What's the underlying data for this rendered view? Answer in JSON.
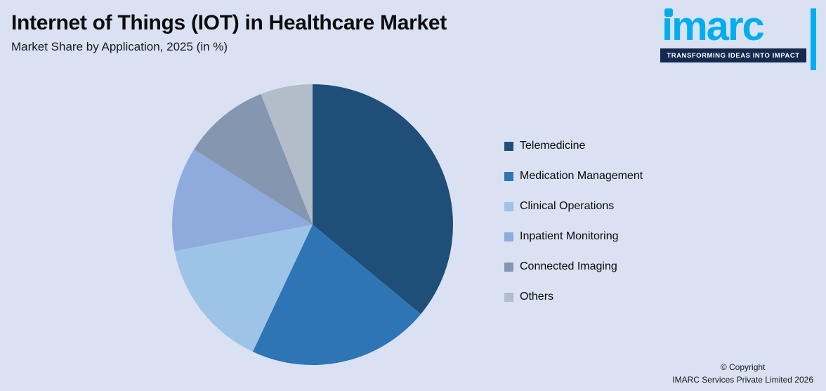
{
  "header": {
    "title": "Internet of Things (IOT) in Healthcare Market",
    "subtitle": "Market Share by Application, 2025 (in %)"
  },
  "logo": {
    "brand": "ımarc",
    "tagline": "TRANSFORMING IDEAS INTO IMPACT",
    "brand_color": "#00aeef",
    "bar_color": "#132a4e"
  },
  "footer": {
    "copyright_line1": "© Copyright",
    "copyright_line2": "IMARC Services Private Limited 2026"
  },
  "page": {
    "background_color": "#d9e1f2"
  },
  "chart_data": {
    "type": "pie",
    "title": "Internet of Things (IOT) in Healthcare Market",
    "subtitle": "Market Share by Application, 2025 (in %)",
    "unit": "%",
    "start_angle_deg": 0,
    "direction": "clockwise",
    "legend_position": "right",
    "grid": false,
    "categories": [
      "Telemedicine",
      "Medication Management",
      "Clinical Operations",
      "Inpatient Monitoring",
      "Connected Imaging",
      "Others"
    ],
    "values": [
      36,
      21,
      15,
      12,
      10,
      6
    ],
    "colors": [
      "#1f4e79",
      "#2e75b6",
      "#9dc3e6",
      "#8faadc",
      "#8496b0",
      "#b3bcc9"
    ]
  }
}
